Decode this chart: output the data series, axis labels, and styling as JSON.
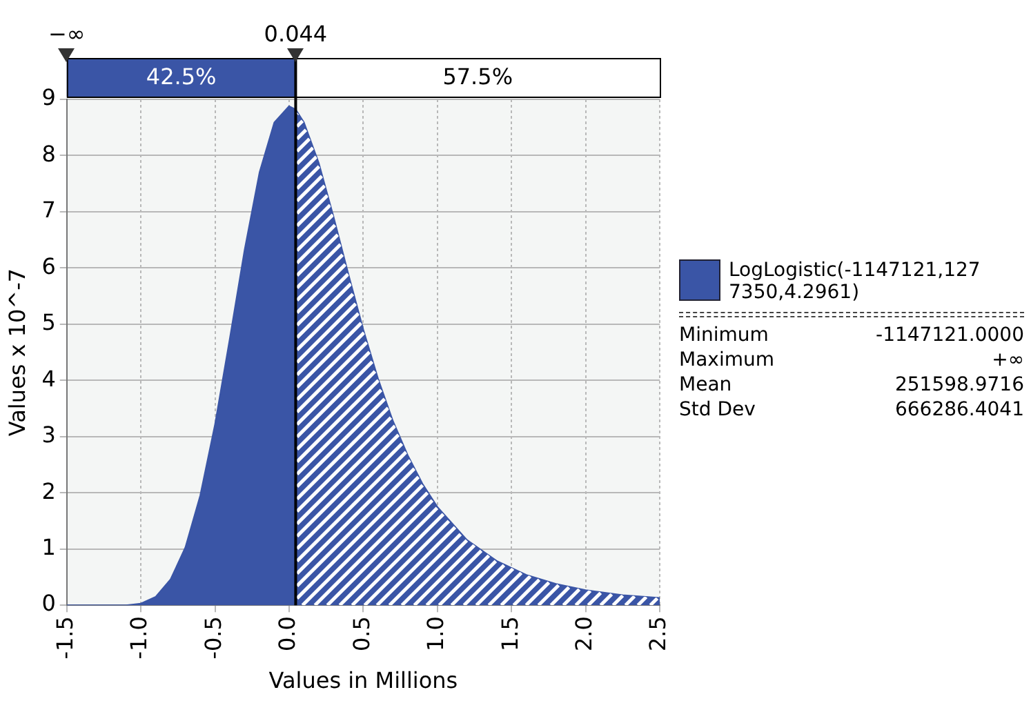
{
  "chart_data": {
    "type": "area",
    "xlabel": "Values in Millions",
    "ylabel": "Values x 10^-7",
    "x": [
      -1.5,
      -1.147,
      -1.1,
      -1.0,
      -0.9,
      -0.8,
      -0.7,
      -0.6,
      -0.5,
      -0.4,
      -0.3,
      -0.2,
      -0.1,
      0.0,
      0.044,
      0.1,
      0.2,
      0.3,
      0.4,
      0.5,
      0.6,
      0.7,
      0.8,
      0.9,
      1.0,
      1.2,
      1.4,
      1.6,
      1.8,
      2.0,
      2.25,
      2.5
    ],
    "series": [
      {
        "name": "LogLogistic(-1147121,1277350,4.2961)",
        "color": "#3a55a6",
        "values": [
          0,
          0,
          0,
          0.03,
          0.15,
          0.46,
          1.03,
          1.95,
          3.22,
          4.75,
          6.33,
          7.7,
          8.59,
          8.88,
          8.82,
          8.59,
          7.87,
          6.91,
          5.89,
          4.91,
          4.03,
          3.28,
          2.67,
          2.16,
          1.75,
          1.16,
          0.79,
          0.54,
          0.38,
          0.27,
          0.18,
          0.13
        ]
      }
    ],
    "xlim": [
      -1.5,
      2.5
    ],
    "xticks": [
      {
        "value": -1.5,
        "label": "-1.5"
      },
      {
        "value": -1,
        "label": "-1.0"
      },
      {
        "value": -0.5,
        "label": "-0.5"
      },
      {
        "value": 0,
        "label": "0.0"
      },
      {
        "value": 0.5,
        "label": "0.5"
      },
      {
        "value": 1,
        "label": "1.0"
      },
      {
        "value": 1.5,
        "label": "1.5"
      },
      {
        "value": 2,
        "label": "2.0"
      },
      {
        "value": 2.5,
        "label": "2.5"
      }
    ],
    "ylim": [
      0,
      9
    ],
    "yticks": [
      0,
      1,
      2,
      3,
      4,
      5,
      6,
      7,
      8,
      9
    ],
    "ref_lines": [
      {
        "axis": "x",
        "value": 0.044,
        "label": "0.044",
        "color": "#000000"
      }
    ],
    "annotations": [
      "−∞",
      "42.5%",
      "57.5%",
      "Minimum",
      "-1147121.0000",
      "Maximum",
      "+∞",
      "Mean",
      "251598.9716",
      "Std Dev",
      "666286.4041"
    ],
    "grid": true,
    "legend": "right",
    "marker": "none"
  }
}
